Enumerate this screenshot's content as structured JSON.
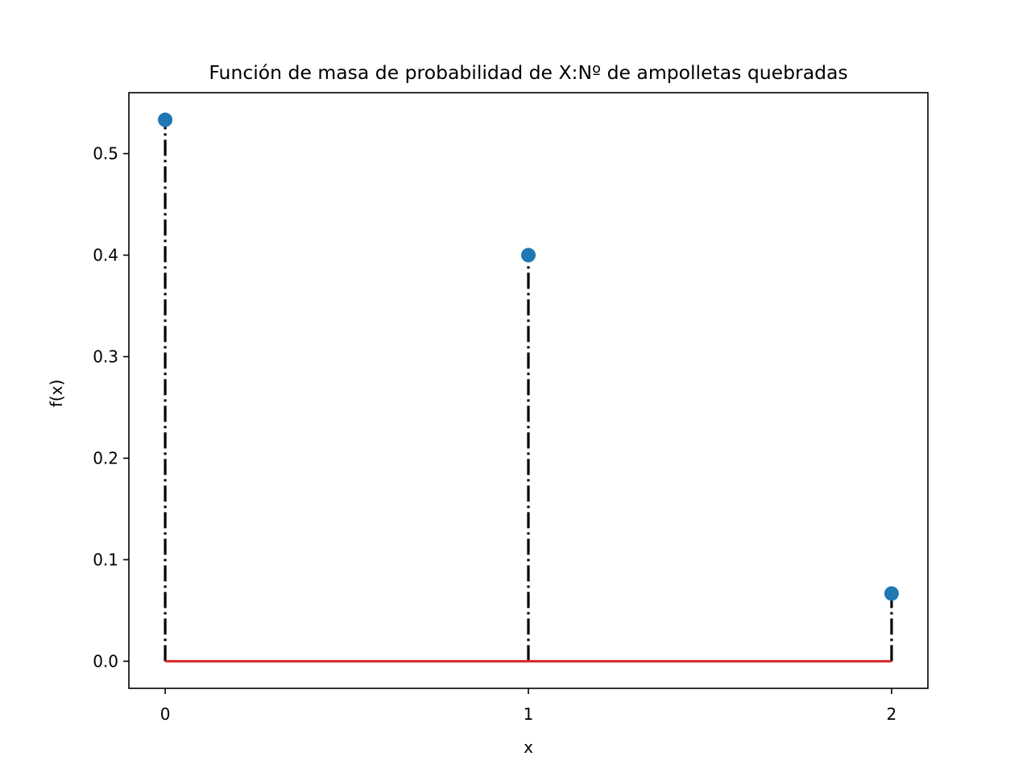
{
  "chart_data": {
    "type": "stem",
    "title": "Función de masa de probabilidad de X:Nº de ampolletas quebradas",
    "xlabel": "x",
    "ylabel": "f(x)",
    "x": [
      0,
      1,
      2
    ],
    "values": [
      0.5333,
      0.4,
      0.0667
    ],
    "xlim": [
      -0.1,
      2.1
    ],
    "ylim": [
      -0.0267,
      0.56
    ],
    "xticks": [
      0,
      1,
      2
    ],
    "xtick_labels": [
      "0",
      "1",
      "2"
    ],
    "yticks": [
      0.0,
      0.1,
      0.2,
      0.3,
      0.4,
      0.5
    ],
    "ytick_labels": [
      "0.0",
      "0.1",
      "0.2",
      "0.3",
      "0.4",
      "0.5"
    ],
    "grid": false,
    "legend": "none",
    "colors": {
      "marker": "#1f77b4",
      "stem": "#000000",
      "baseline": "#d62728",
      "axes": "#000000"
    },
    "stem_style": "dash-dot",
    "marker_style": "circle"
  }
}
